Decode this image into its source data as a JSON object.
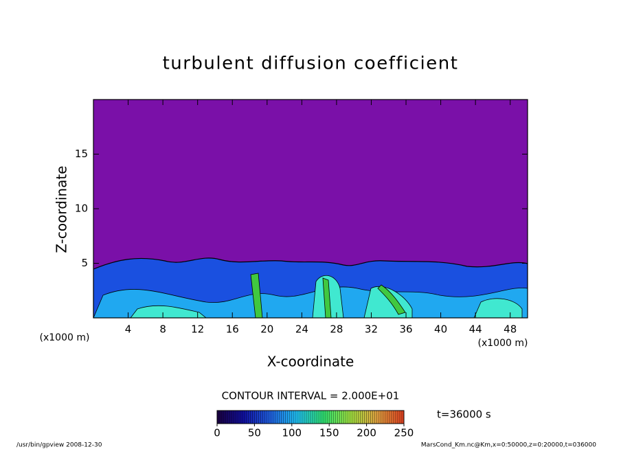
{
  "chart_data": {
    "type": "contour",
    "title": "turbulent diffusion coefficient",
    "x_label": "X-coordinate",
    "y_label": "Z-coordinate",
    "x_unit": "(x1000 m)",
    "xlim": [
      0,
      50
    ],
    "xticks": [
      4,
      8,
      12,
      16,
      20,
      24,
      28,
      32,
      36,
      40,
      44,
      48
    ],
    "ylim": [
      0,
      20
    ],
    "yticks": [
      5,
      10,
      15
    ],
    "contour_interval": "CONTOUR INTERVAL = 2.000E+01",
    "time": "t=36000 s",
    "colorbar": {
      "lim": [
        0,
        250
      ],
      "ticks": [
        0,
        50,
        100,
        150,
        200,
        250
      ],
      "colors": [
        "#1a0040",
        "#1010a0",
        "#2060e0",
        "#20c0f0",
        "#30e070",
        "#a0e040",
        "#e0a040",
        "#e04020"
      ]
    },
    "footer_left": "/usr/bin/gpview   2008-12-30",
    "footer_right": "MarsCond_Km.nc@Km,x=0:50000,z=0:20000,t=036000"
  }
}
